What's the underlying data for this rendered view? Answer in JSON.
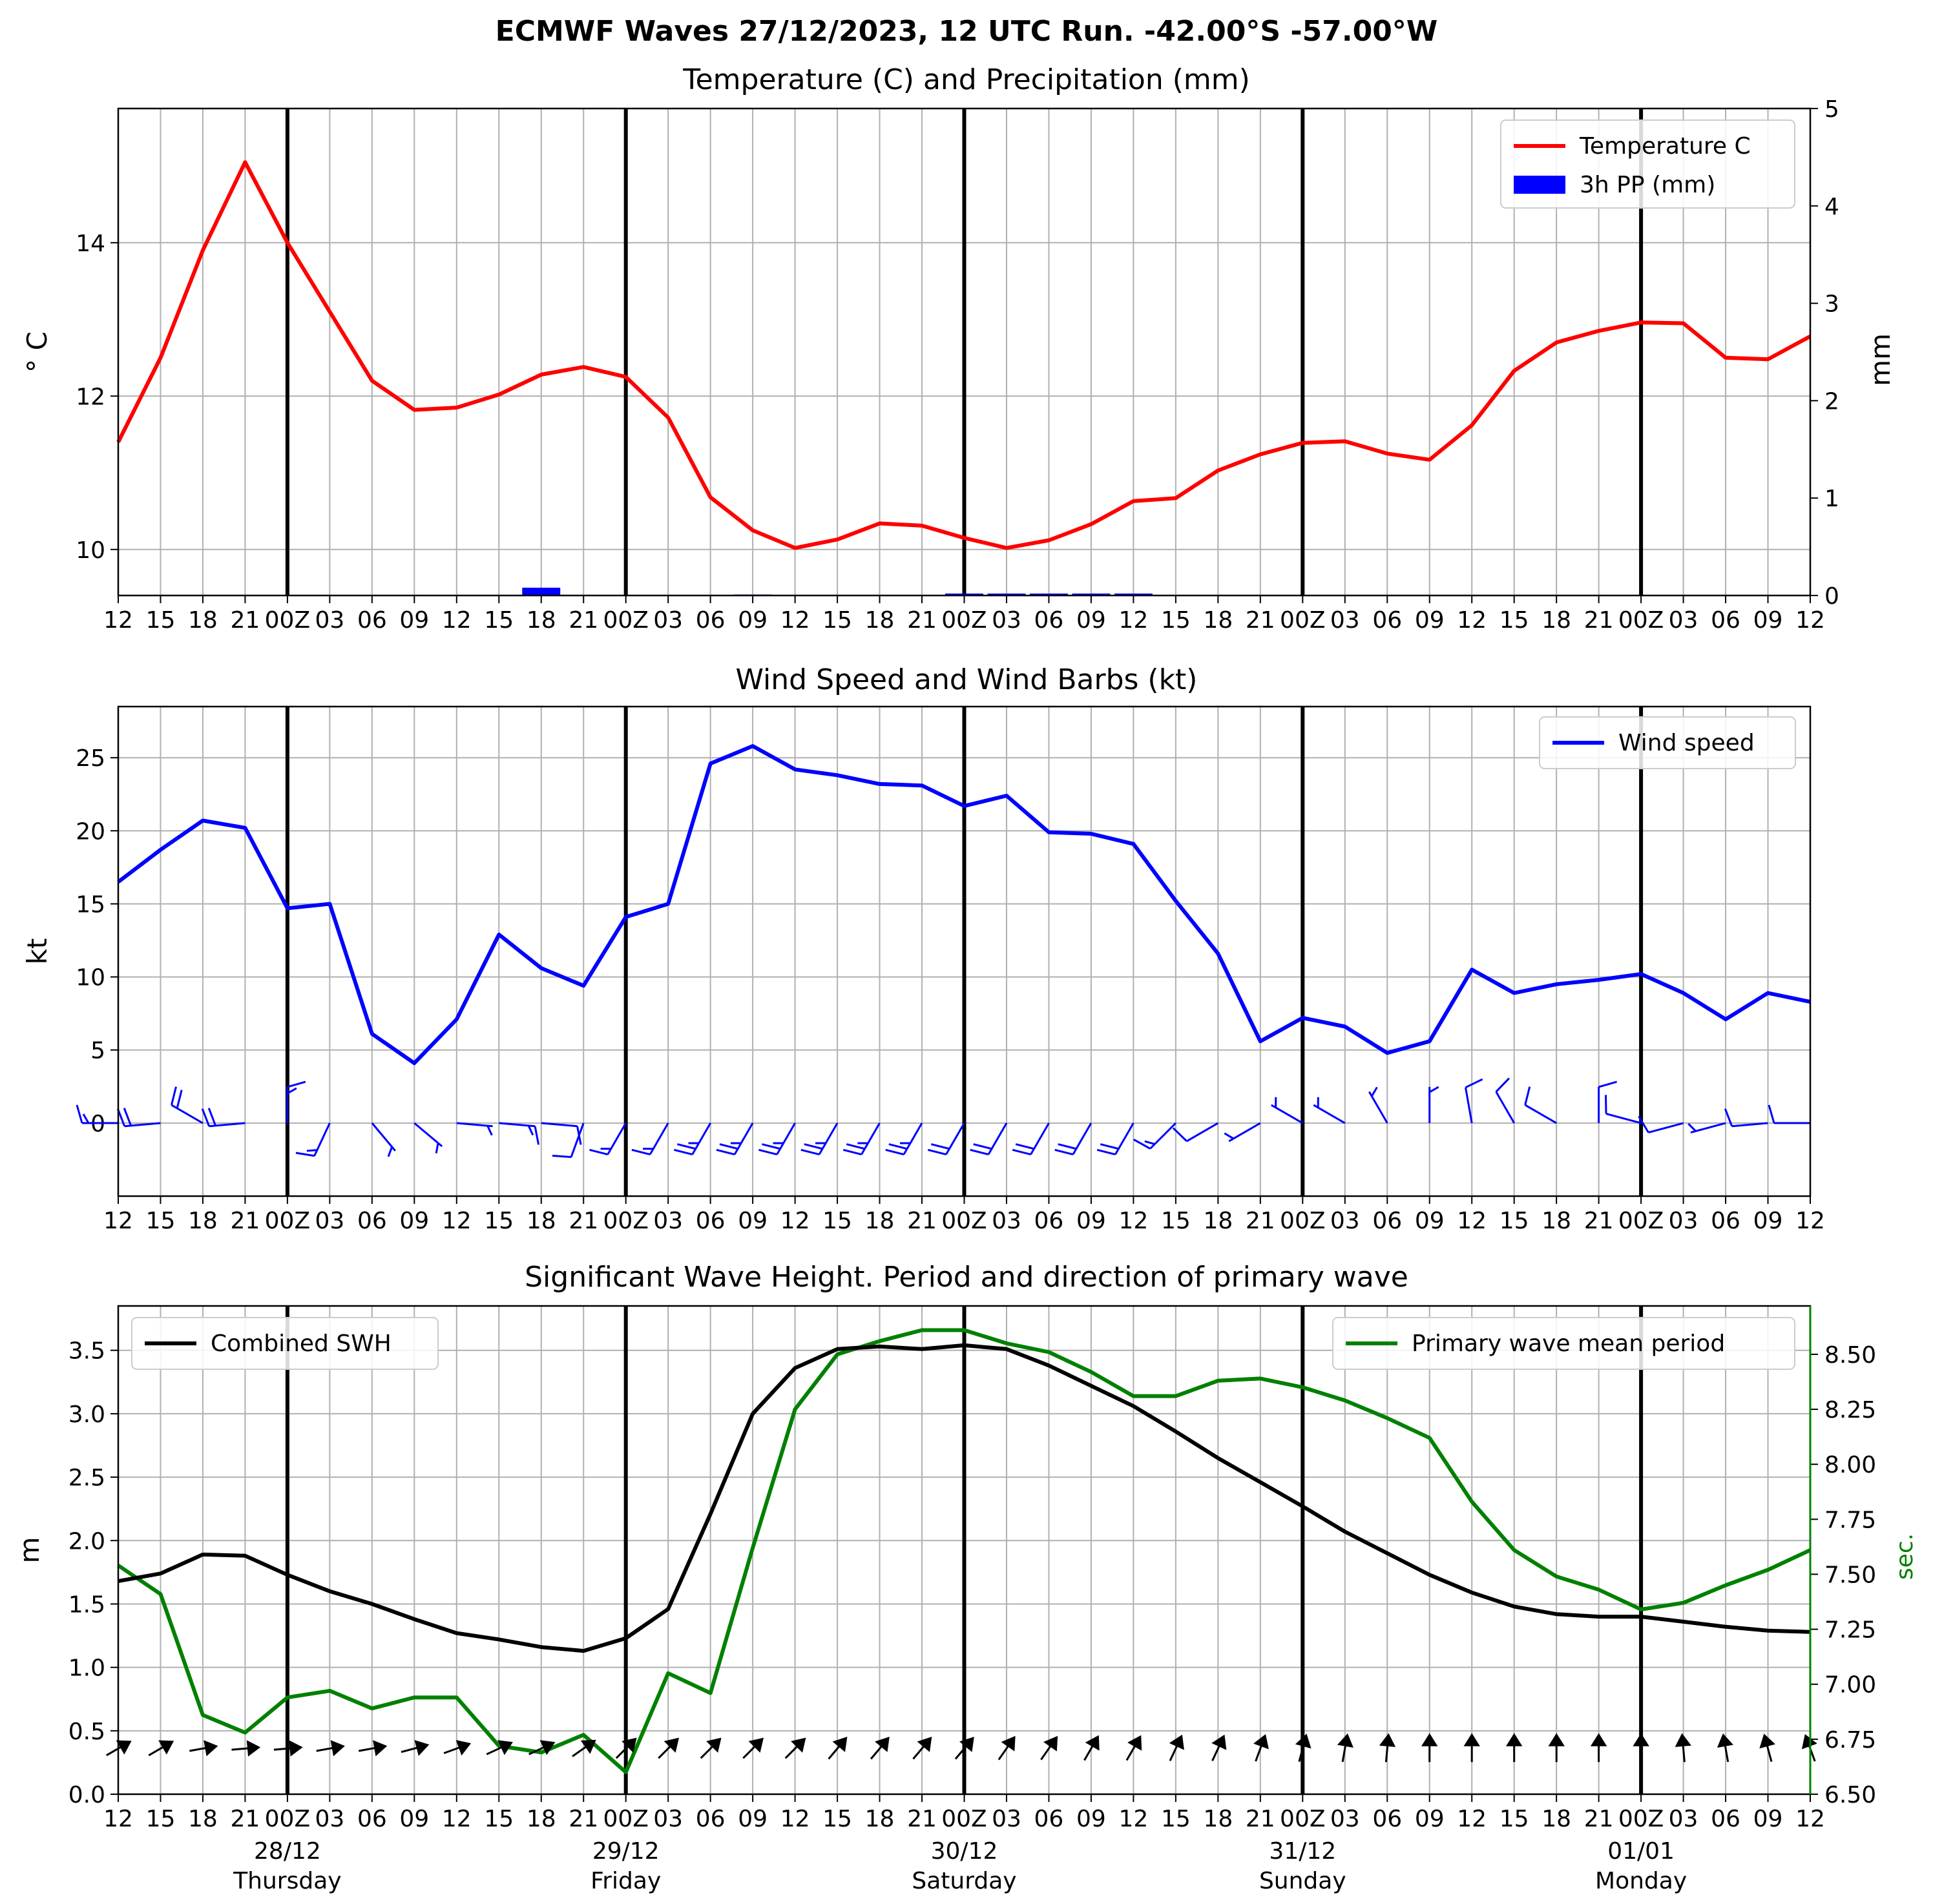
{
  "figure_title": "ECMWF Waves 27/12/2023, 12 UTC Run. -42.00°S -57.00°W",
  "time_ticks": [
    "12",
    "15",
    "18",
    "21",
    "00Z",
    "03",
    "06",
    "09",
    "12",
    "15",
    "18",
    "21",
    "00Z",
    "03",
    "06",
    "09",
    "12",
    "15",
    "18",
    "21",
    "00Z",
    "03",
    "06",
    "09",
    "12",
    "15",
    "18",
    "21",
    "00Z",
    "03",
    "06",
    "09",
    "12",
    "15",
    "18",
    "21",
    "00Z",
    "03",
    "06",
    "09",
    "12"
  ],
  "day_labels": [
    {
      "date": "28/12",
      "weekday": "Thursday",
      "tick_index": 4
    },
    {
      "date": "29/12",
      "weekday": "Friday",
      "tick_index": 12
    },
    {
      "date": "30/12",
      "weekday": "Saturday",
      "tick_index": 20
    },
    {
      "date": "31/12",
      "weekday": "Sunday",
      "tick_index": 28
    },
    {
      "date": "01/01",
      "weekday": "Monday",
      "tick_index": 36
    }
  ],
  "colors": {
    "temperature": "#ff0000",
    "precip": "#0000ff",
    "wind": "#0000ff",
    "swh": "#000000",
    "period": "#008000",
    "grid": "#b0b0b0"
  },
  "chart_data": [
    {
      "type": "line",
      "title": "Temperature (C) and Precipitation (mm)",
      "ylabel": "$^\\circ$C",
      "ylabel_display": "° C",
      "y2label": "mm",
      "ylim": [
        9.4,
        15.75
      ],
      "y_ticks": [
        10,
        12,
        14
      ],
      "y2lim": [
        0,
        5
      ],
      "y2_ticks": [
        0,
        1,
        2,
        3,
        4,
        5
      ],
      "grid": true,
      "legend_placement": "upper right",
      "series": [
        {
          "name": "Temperature C",
          "axis": "left",
          "type": "line",
          "values": [
            11.4,
            12.5,
            13.9,
            15.05,
            14.0,
            13.1,
            12.2,
            11.82,
            11.85,
            12.02,
            12.28,
            12.38,
            12.25,
            11.72,
            10.68,
            10.25,
            10.02,
            10.13,
            10.34,
            10.31,
            10.15,
            10.02,
            10.12,
            10.33,
            10.63,
            10.67,
            11.03,
            11.24,
            11.39,
            11.41,
            11.25,
            11.17,
            11.62,
            12.33,
            12.7,
            12.85,
            12.96,
            12.95,
            12.5,
            12.48,
            12.78
          ]
        },
        {
          "name": "3h PP (mm)",
          "axis": "right",
          "type": "bar",
          "values": [
            0,
            0,
            0,
            0,
            0,
            0,
            0,
            0,
            0,
            0,
            0.08,
            0,
            0,
            0,
            0,
            0.01,
            0,
            0,
            0,
            0,
            0.02,
            0.02,
            0.02,
            0.02,
            0.02,
            0,
            0,
            0,
            0,
            0,
            0,
            0,
            0,
            0,
            0,
            0,
            0,
            0,
            0,
            0,
            0
          ]
        }
      ]
    },
    {
      "type": "line",
      "title": "Wind Speed and Wind Barbs (kt)",
      "ylabel": "kt",
      "ylim": [
        -5,
        28.5
      ],
      "y_ticks": [
        0,
        5,
        10,
        15,
        20,
        25
      ],
      "grid": true,
      "legend_placement": "upper right",
      "series": [
        {
          "name": "Wind speed",
          "values": [
            16.5,
            18.7,
            20.7,
            20.2,
            14.7,
            15.0,
            6.1,
            4.1,
            7.1,
            12.9,
            10.6,
            9.4,
            14.1,
            15.0,
            24.6,
            25.8,
            24.2,
            23.8,
            23.2,
            23.1,
            21.7,
            22.4,
            19.9,
            19.8,
            19.1,
            15.2,
            11.6,
            5.6,
            7.2,
            6.6,
            4.8,
            5.6,
            10.5,
            8.9,
            9.5,
            9.8,
            10.2,
            8.9,
            7.1,
            8.9,
            8.3
          ]
        }
      ],
      "barbs": {
        "speed_kt": [
          16.5,
          18.7,
          20.7,
          20.2,
          14.7,
          15.0,
          6.1,
          4.1,
          7.1,
          12.9,
          10.6,
          9.4,
          14.1,
          15.0,
          24.6,
          25.8,
          24.2,
          23.8,
          23.2,
          23.1,
          21.7,
          22.4,
          19.9,
          19.8,
          19.1,
          15.2,
          11.6,
          5.6,
          7.2,
          6.6,
          4.8,
          5.6,
          10.5,
          8.9,
          9.5,
          9.8,
          10.2,
          8.9,
          7.1,
          8.9,
          8.3
        ],
        "from_direction_deg": [
          270,
          265,
          300,
          265,
          0,
          205,
          140,
          130,
          95,
          95,
          95,
          200,
          210,
          210,
          210,
          210,
          210,
          210,
          210,
          210,
          210,
          210,
          210,
          210,
          210,
          225,
          240,
          240,
          300,
          300,
          330,
          360,
          350,
          330,
          300,
          0,
          285,
          255,
          255,
          265,
          270
        ]
      }
    },
    {
      "type": "line",
      "title": "Significant Wave Height. Period and direction of primary wave",
      "ylabel": "m",
      "y2label": "sec.",
      "ylim": [
        0,
        3.85
      ],
      "y_ticks": [
        0.0,
        0.5,
        1.0,
        1.5,
        2.0,
        2.5,
        3.0,
        3.5
      ],
      "y2lim": [
        6.5,
        8.72
      ],
      "y2_ticks": [
        6.5,
        6.75,
        7.0,
        7.25,
        7.5,
        7.75,
        8.0,
        8.25,
        8.5
      ],
      "grid": true,
      "series": [
        {
          "name": "Combined SWH",
          "axis": "left",
          "legend_placement": "upper left",
          "values": [
            1.68,
            1.74,
            1.89,
            1.88,
            1.73,
            1.6,
            1.5,
            1.38,
            1.27,
            1.22,
            1.16,
            1.13,
            1.23,
            1.46,
            2.21,
            3.0,
            3.36,
            3.51,
            3.53,
            3.51,
            3.54,
            3.51,
            3.38,
            3.22,
            3.06,
            2.86,
            2.65,
            2.46,
            2.27,
            2.07,
            1.9,
            1.73,
            1.59,
            1.48,
            1.42,
            1.4,
            1.4,
            1.36,
            1.32,
            1.29,
            1.28
          ]
        },
        {
          "name": "Primary wave mean period",
          "axis": "right",
          "legend_placement": "upper right",
          "values": [
            7.54,
            7.41,
            6.86,
            6.78,
            6.94,
            6.97,
            6.89,
            6.94,
            6.94,
            6.72,
            6.69,
            6.77,
            6.6,
            7.05,
            6.96,
            7.62,
            8.25,
            8.5,
            8.56,
            8.61,
            8.61,
            8.55,
            8.51,
            8.42,
            8.31,
            8.31,
            8.38,
            8.39,
            8.35,
            8.29,
            8.21,
            8.12,
            7.83,
            7.61,
            7.49,
            7.43,
            7.34,
            7.37,
            7.45,
            7.52,
            7.61
          ]
        }
      ],
      "primary_wave_direction_deg": [
        240,
        240,
        260,
        265,
        265,
        260,
        260,
        255,
        250,
        245,
        245,
        235,
        225,
        225,
        225,
        225,
        225,
        220,
        220,
        220,
        220,
        215,
        215,
        210,
        210,
        205,
        205,
        200,
        195,
        190,
        185,
        180,
        180,
        180,
        180,
        180,
        180,
        175,
        170,
        165,
        160
      ]
    }
  ]
}
